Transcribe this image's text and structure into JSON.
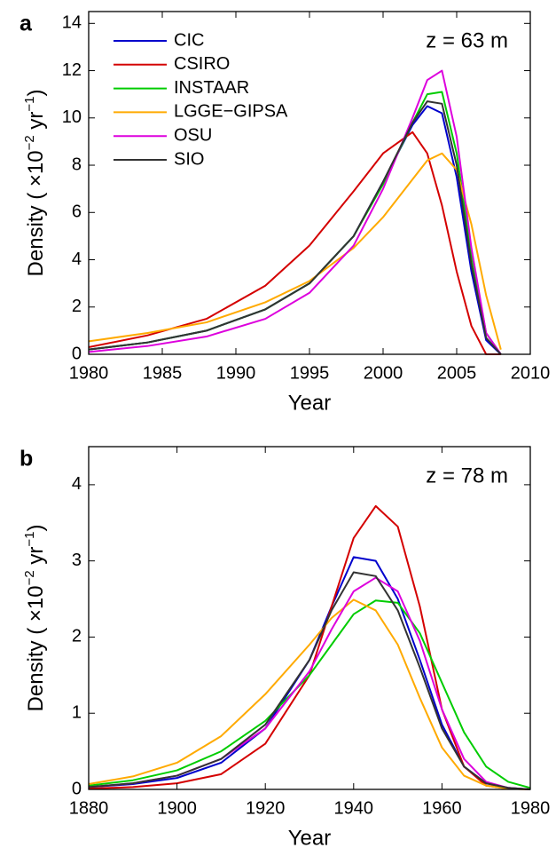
{
  "chart_data": [
    {
      "type": "line",
      "panel": "a",
      "annotation": "z = 63 m",
      "xlabel": "Year",
      "ylabel": [
        "Density ( ×10",
        "−2",
        " yr",
        "−1",
        ")"
      ],
      "xlim": [
        1980,
        2010
      ],
      "xticks": [
        1980,
        1985,
        1990,
        1995,
        2000,
        2005,
        2010
      ],
      "ylim": [
        0,
        14.5
      ],
      "yticks": [
        0,
        2,
        4,
        6,
        8,
        10,
        12,
        14
      ],
      "legend": "upper left",
      "grid": false,
      "x": [
        1980,
        1984,
        1988,
        1992,
        1995,
        1998,
        2000,
        2002,
        2003,
        2004,
        2005,
        2006,
        2007,
        2008
      ],
      "series": [
        {
          "name": "CIC",
          "color": "#0000cc",
          "values": [
            0.2,
            0.5,
            1.0,
            1.9,
            3.0,
            5.0,
            7.3,
            9.7,
            10.5,
            10.2,
            7.5,
            3.5,
            0.6,
            0
          ]
        },
        {
          "name": "CSIRO",
          "color": "#d40000",
          "values": [
            0.3,
            0.8,
            1.5,
            2.9,
            4.6,
            6.9,
            8.5,
            9.4,
            8.5,
            6.3,
            3.5,
            1.2,
            0,
            0
          ]
        },
        {
          "name": "INSTAAR",
          "color": "#00cc00",
          "values": [
            0.2,
            0.5,
            1.0,
            1.9,
            3.0,
            5.0,
            7.2,
            9.8,
            11.0,
            11.1,
            8.5,
            4.2,
            0.9,
            0
          ]
        },
        {
          "name": "LGGE−GIPSA",
          "color": "#ffaa00",
          "values": [
            0.55,
            0.9,
            1.35,
            2.2,
            3.1,
            4.5,
            5.8,
            7.4,
            8.2,
            8.5,
            7.8,
            5.5,
            2.5,
            0.2
          ]
        },
        {
          "name": "OSU",
          "color": "#dd00dd",
          "values": [
            0.1,
            0.35,
            0.75,
            1.5,
            2.6,
            4.6,
            7.0,
            10.0,
            11.6,
            12.0,
            9.2,
            4.5,
            0.9,
            0
          ]
        },
        {
          "name": "SIO",
          "color": "#333333",
          "values": [
            0.2,
            0.5,
            1.0,
            1.9,
            3.0,
            5.0,
            7.3,
            9.8,
            10.7,
            10.6,
            8.0,
            3.8,
            0.7,
            0
          ]
        }
      ]
    },
    {
      "type": "line",
      "panel": "b",
      "annotation": "z = 78 m",
      "xlabel": "Year",
      "ylabel": [
        "Density ( ×10",
        "−2",
        " yr",
        "−1",
        ")"
      ],
      "xlim": [
        1880,
        1980
      ],
      "xticks": [
        1880,
        1900,
        1920,
        1940,
        1960,
        1980
      ],
      "ylim": [
        0,
        4.5
      ],
      "yticks": [
        0,
        1,
        2,
        3,
        4
      ],
      "grid": false,
      "x": [
        1880,
        1890,
        1900,
        1910,
        1920,
        1930,
        1935,
        1940,
        1945,
        1950,
        1955,
        1960,
        1965,
        1970,
        1975,
        1980
      ],
      "series": [
        {
          "color": "#0000cc",
          "values": [
            0.03,
            0.07,
            0.15,
            0.35,
            0.8,
            1.7,
            2.4,
            3.05,
            3.0,
            2.5,
            1.7,
            0.85,
            0.3,
            0.08,
            0.02,
            0
          ]
        },
        {
          "color": "#d40000",
          "values": [
            0.01,
            0.03,
            0.08,
            0.2,
            0.6,
            1.5,
            2.4,
            3.3,
            3.72,
            3.45,
            2.4,
            1.05,
            0.3,
            0.05,
            0.01,
            0
          ]
        },
        {
          "color": "#00cc00",
          "values": [
            0.05,
            0.12,
            0.25,
            0.5,
            0.9,
            1.5,
            1.9,
            2.3,
            2.48,
            2.45,
            2.05,
            1.4,
            0.75,
            0.3,
            0.1,
            0.02
          ]
        },
        {
          "color": "#ffaa00",
          "values": [
            0.07,
            0.17,
            0.35,
            0.7,
            1.25,
            1.9,
            2.25,
            2.49,
            2.35,
            1.9,
            1.2,
            0.55,
            0.18,
            0.05,
            0.01,
            0
          ]
        },
        {
          "color": "#dd00dd",
          "values": [
            0.03,
            0.08,
            0.18,
            0.4,
            0.8,
            1.55,
            2.1,
            2.6,
            2.78,
            2.6,
            1.95,
            1.05,
            0.4,
            0.1,
            0.02,
            0
          ]
        },
        {
          "color": "#333333",
          "values": [
            0.03,
            0.08,
            0.18,
            0.4,
            0.85,
            1.7,
            2.35,
            2.85,
            2.8,
            2.35,
            1.6,
            0.8,
            0.3,
            0.08,
            0.02,
            0
          ]
        }
      ]
    }
  ]
}
